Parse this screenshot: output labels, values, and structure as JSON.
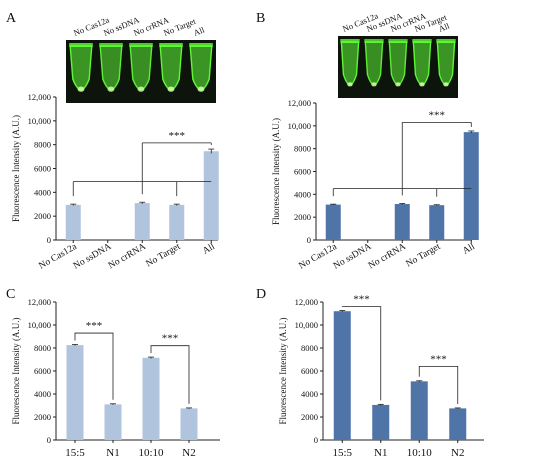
{
  "colors": {
    "light_bar": "#b0c4de",
    "dark_bar": "#4f74a8",
    "gel_background": "#0c140c",
    "fluorescence": "#62ff38",
    "axis": "#222222"
  },
  "chart_data": [
    {
      "panel": "A",
      "type": "bar",
      "title": "",
      "ylabel": "Fluorescence Intensity (A.U.)",
      "categories": [
        "No Cas12a",
        "No ssDNA",
        "No crRNA",
        "No Target",
        "All"
      ],
      "values": [
        2950,
        0,
        3100,
        2950,
        7450
      ],
      "errors": [
        60,
        0,
        70,
        60,
        180
      ],
      "ylim": [
        0,
        12000
      ],
      "yticks": [
        "0",
        "2000",
        "4000",
        "6000",
        "8000",
        "10,000",
        "12,000"
      ],
      "bar_color": "light",
      "gel_labels": [
        "No Cas12a",
        "No ssDNA",
        "No crRNA",
        "No Target",
        "All"
      ],
      "gel_tube_brightness": [
        1.0,
        0.95,
        0.95,
        1.0,
        1.0
      ],
      "annotations": [
        {
          "type": "bracket_multi",
          "from": [
            0,
            4
          ],
          "to": 4,
          "y": 4900,
          "top": 8150,
          "label": "***"
        }
      ]
    },
    {
      "panel": "B",
      "type": "bar",
      "title": "",
      "ylabel": "Fluorescence Intensity (A.U.)",
      "categories": [
        "No Cas12a",
        "No ssDNA",
        "No crRNA",
        "No Target",
        "All"
      ],
      "values": [
        3100,
        0,
        3150,
        3050,
        9450
      ],
      "errors": [
        40,
        0,
        50,
        40,
        100
      ],
      "ylim": [
        0,
        12000
      ],
      "yticks": [
        "0",
        "2000",
        "4000",
        "6000",
        "8000",
        "10,000",
        "12,000"
      ],
      "bar_color": "dark",
      "gel_labels": [
        "No Cas12a",
        "No ssDNA",
        "No crRNA",
        "No Target",
        "All"
      ],
      "gel_tube_brightness": [
        1.0,
        0.95,
        0.95,
        1.0,
        1.0
      ],
      "annotations": [
        {
          "type": "bracket_multi",
          "from": [
            0,
            4
          ],
          "to": 4,
          "y": 4500,
          "top": 10300,
          "label": "***"
        }
      ]
    },
    {
      "panel": "C",
      "type": "bar",
      "title": "",
      "ylabel": "Fluorescence Intensity (A.U.)",
      "categories": [
        "15:5",
        "N1",
        "10:10",
        "N2"
      ],
      "values": [
        8250,
        3100,
        7150,
        2750
      ],
      "errors": [
        50,
        50,
        60,
        40
      ],
      "ylim": [
        0,
        12000
      ],
      "yticks": [
        "0",
        "2000",
        "4000",
        "6000",
        "8000",
        "10,000",
        "12,000"
      ],
      "bar_color": "light",
      "annotations": [
        {
          "type": "bracket",
          "a": 0,
          "b": 1,
          "top": 9300,
          "label": "***"
        },
        {
          "type": "bracket",
          "a": 2,
          "b": 3,
          "top": 8200,
          "label": "***"
        }
      ]
    },
    {
      "panel": "D",
      "type": "bar",
      "title": "",
      "ylabel": "Fluorescence Intensity (A.U.)",
      "categories": [
        "15:5",
        "N1",
        "10:10",
        "N2"
      ],
      "values": [
        11200,
        3050,
        5100,
        2750
      ],
      "errors": [
        60,
        50,
        50,
        40
      ],
      "ylim": [
        0,
        12000
      ],
      "yticks": [
        "0",
        "2000",
        "4000",
        "6000",
        "8000",
        "10,000",
        "12,000"
      ],
      "bar_color": "dark",
      "annotations": [
        {
          "type": "bracket",
          "a": 0,
          "b": 1,
          "top": 11600,
          "label": "***"
        },
        {
          "type": "bracket",
          "a": 2,
          "b": 3,
          "top": 6400,
          "label": "***"
        }
      ]
    }
  ]
}
